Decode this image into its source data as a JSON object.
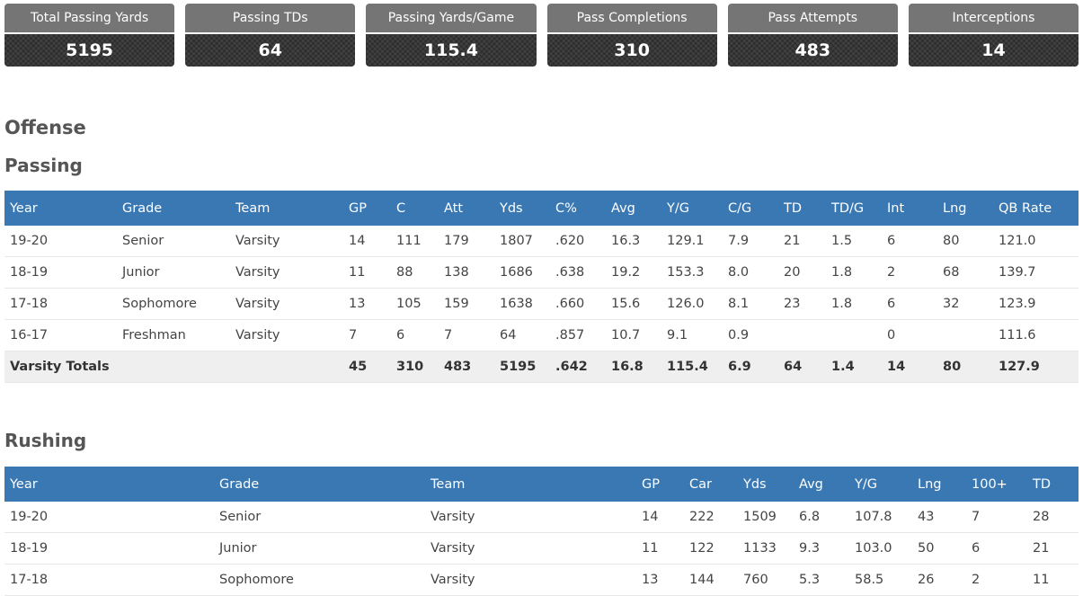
{
  "stats": [
    {
      "label": "Total Passing Yards",
      "value": "5195"
    },
    {
      "label": "Passing TDs",
      "value": "64"
    },
    {
      "label": "Passing Yards/Game",
      "value": "115.4"
    },
    {
      "label": "Pass Completions",
      "value": "310"
    },
    {
      "label": "Pass Attempts",
      "value": "483"
    },
    {
      "label": "Interceptions",
      "value": "14"
    }
  ],
  "section_title": "Offense",
  "passing": {
    "title": "Passing",
    "headers": [
      "Year",
      "Grade",
      "Team",
      "GP",
      "C",
      "Att",
      "Yds",
      "C%",
      "Avg",
      "Y/G",
      "C/G",
      "TD",
      "TD/G",
      "Int",
      "Lng",
      "QB Rate"
    ],
    "rows": [
      [
        "19-20",
        "Senior",
        "Varsity",
        "14",
        "111",
        "179",
        "1807",
        ".620",
        "16.3",
        "129.1",
        "7.9",
        "21",
        "1.5",
        "6",
        "80",
        "121.0"
      ],
      [
        "18-19",
        "Junior",
        "Varsity",
        "11",
        "88",
        "138",
        "1686",
        ".638",
        "19.2",
        "153.3",
        "8.0",
        "20",
        "1.8",
        "2",
        "68",
        "139.7"
      ],
      [
        "17-18",
        "Sophomore",
        "Varsity",
        "13",
        "105",
        "159",
        "1638",
        ".660",
        "15.6",
        "126.0",
        "8.1",
        "23",
        "1.8",
        "6",
        "32",
        "123.9"
      ],
      [
        "16-17",
        "Freshman",
        "Varsity",
        "7",
        "6",
        "7",
        "64",
        ".857",
        "10.7",
        "9.1",
        "0.9",
        "",
        "",
        "0",
        "",
        "111.6"
      ]
    ],
    "totals": {
      "label": "Varsity Totals",
      "values": [
        "45",
        "310",
        "483",
        "5195",
        ".642",
        "16.8",
        "115.4",
        "6.9",
        "64",
        "1.4",
        "14",
        "80",
        "127.9"
      ]
    }
  },
  "rushing": {
    "title": "Rushing",
    "headers": [
      "Year",
      "Grade",
      "Team",
      "GP",
      "Car",
      "Yds",
      "Avg",
      "Y/G",
      "Lng",
      "100+",
      "TD"
    ],
    "rows": [
      [
        "19-20",
        "Senior",
        "Varsity",
        "14",
        "222",
        "1509",
        "6.8",
        "107.8",
        "43",
        "7",
        "28"
      ],
      [
        "18-19",
        "Junior",
        "Varsity",
        "11",
        "122",
        "1133",
        "9.3",
        "103.0",
        "50",
        "6",
        "21"
      ],
      [
        "17-18",
        "Sophomore",
        "Varsity",
        "13",
        "144",
        "760",
        "5.3",
        "58.5",
        "26",
        "2",
        "11"
      ]
    ]
  }
}
